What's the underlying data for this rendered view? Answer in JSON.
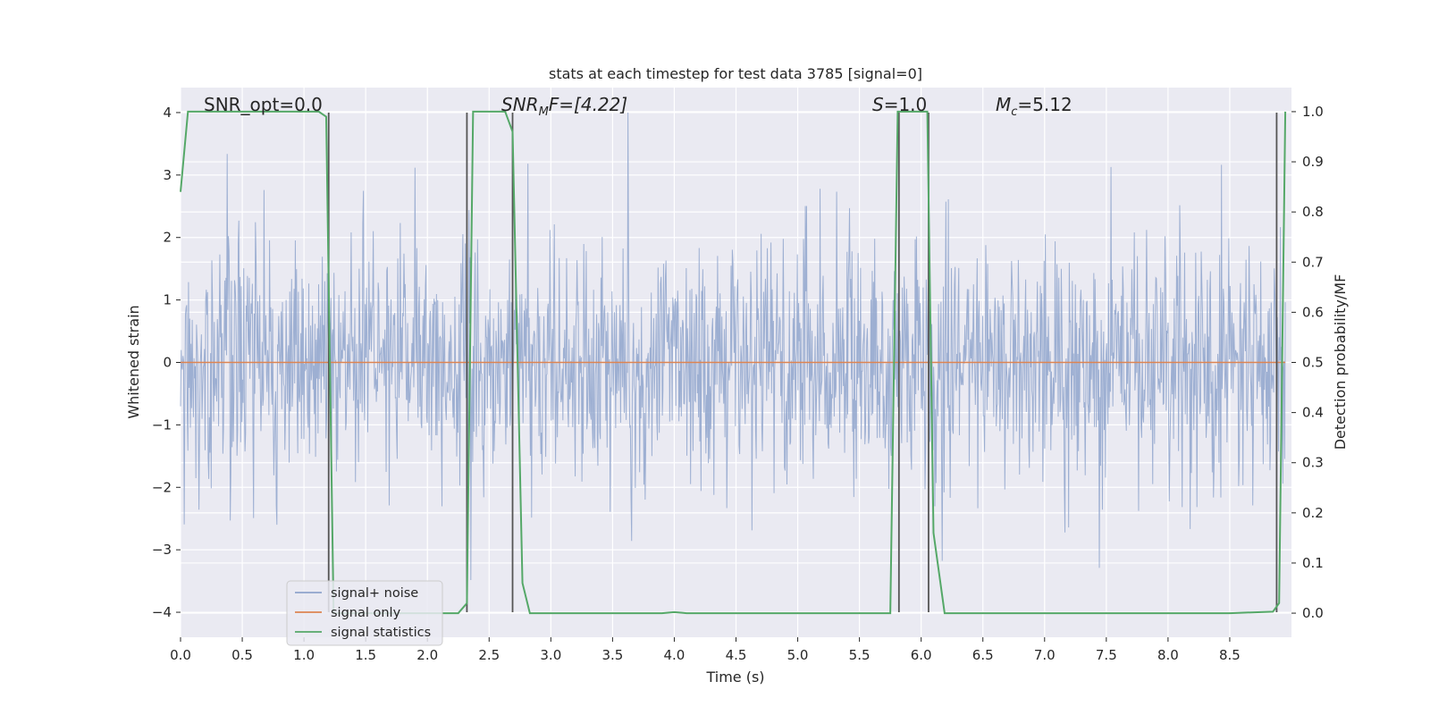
{
  "chart_data": {
    "type": "line",
    "title": "stats at each timestep for test data 3785 [signal=0]",
    "xlabel": "Time (s)",
    "ylabel": "Whitened strain",
    "y2label": "Detection probability/MF",
    "xlim": [
      0.0,
      9.0
    ],
    "ylim": [
      -4.4,
      4.4
    ],
    "y2lim": [
      -0.048,
      1.048
    ],
    "x_ticks": [
      0.0,
      0.5,
      1.0,
      1.5,
      2.0,
      2.5,
      3.0,
      3.5,
      4.0,
      4.5,
      5.0,
      5.5,
      6.0,
      6.5,
      7.0,
      7.5,
      8.0,
      8.5
    ],
    "x_tick_labels": [
      "0.0",
      "0.5",
      "1.0",
      "1.5",
      "2.0",
      "2.5",
      "3.0",
      "3.5",
      "4.0",
      "4.5",
      "5.0",
      "5.5",
      "6.0",
      "6.5",
      "7.0",
      "7.5",
      "8.0",
      "8.5"
    ],
    "y_ticks": [
      4,
      3,
      2,
      1,
      0,
      -1,
      -2,
      -3,
      -4
    ],
    "y_tick_labels": [
      "4",
      "3",
      "2",
      "1",
      "0",
      "−1",
      "−2",
      "−3",
      "−4"
    ],
    "y2_ticks": [
      1.0,
      0.9,
      0.8,
      0.7,
      0.6,
      0.5,
      0.4,
      0.3,
      0.2,
      0.1,
      0.0
    ],
    "y2_tick_labels": [
      "1.0",
      "0.9",
      "0.8",
      "0.7",
      "0.6",
      "0.5",
      "0.4",
      "0.3",
      "0.2",
      "0.1",
      "0.0"
    ],
    "grid": true,
    "legend_position": "lower-left",
    "legend": [
      {
        "label": "signal+ noise",
        "color": "#8fa4cc"
      },
      {
        "label": "signal only",
        "color": "#dd8452"
      },
      {
        "label": "signal statistics",
        "color": "#55a868"
      }
    ],
    "annotations": [
      {
        "id": "snr-opt",
        "prefix": "SNR_opt=0.0",
        "sub": "",
        "suffix": ""
      },
      {
        "id": "snr-mf",
        "prefix": "SNR",
        "sub": "M",
        "suffix": "F=[4.22]"
      },
      {
        "id": "s",
        "prefix": "S",
        "sub": "",
        "suffix": "=1.0"
      },
      {
        "id": "mc",
        "prefix": "M",
        "sub": "c",
        "suffix": "=5.12"
      }
    ],
    "noise_series": {
      "name": "signal+ noise",
      "color": "#8fa4cc",
      "t_start": 0.0,
      "t_end": 8.95,
      "band_sigma": 1.0,
      "peak_range": [
        -3.9,
        4.0
      ]
    },
    "signal_series": {
      "name": "signal only",
      "color": "#dd8452",
      "x": [
        0.0,
        8.95
      ],
      "y": [
        0.0,
        0.0
      ]
    },
    "stat_series": {
      "name": "signal statistics",
      "color": "#55a868",
      "x": [
        0.0,
        0.06,
        0.12,
        1.12,
        1.18,
        1.24,
        2.25,
        2.32,
        2.37,
        2.63,
        2.69,
        2.77,
        2.83,
        3.9,
        4.0,
        4.1,
        5.75,
        5.81,
        5.88,
        6.05,
        6.1,
        6.19,
        6.5,
        8.5,
        8.85,
        8.9,
        8.95
      ],
      "y": [
        0.84,
        1.0,
        1.0,
        1.0,
        0.99,
        0.0,
        0.0,
        0.02,
        1.0,
        1.0,
        0.96,
        0.06,
        0.0,
        0.0,
        0.002,
        0.0,
        0.0,
        1.0,
        1.0,
        1.0,
        0.16,
        0.0,
        0.0,
        0.0,
        0.003,
        0.02,
        1.0
      ]
    },
    "detection_markers_x": [
      1.2,
      2.32,
      2.69,
      5.82,
      6.06,
      8.88
    ],
    "detection_marker_color": "#555555"
  }
}
